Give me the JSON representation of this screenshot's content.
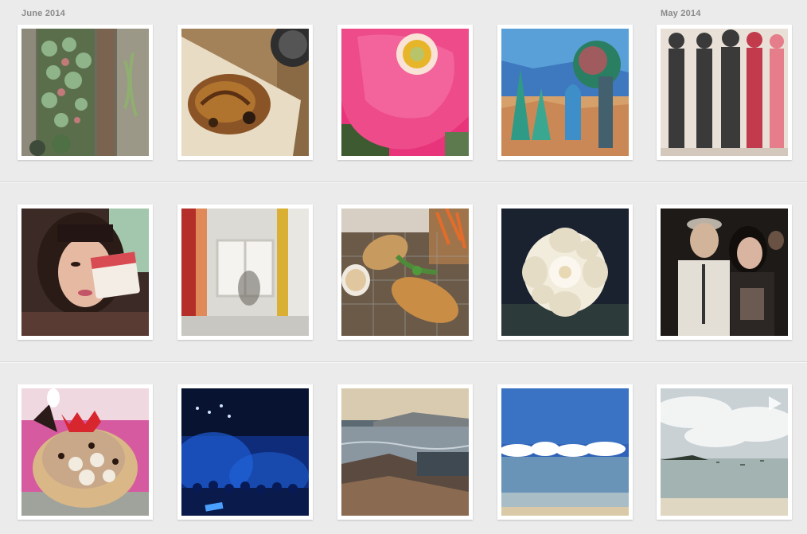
{
  "months": [
    {
      "label": "June 2014"
    },
    {
      "label": "May 2014"
    }
  ],
  "photos": [
    {
      "subject": "succulent-planter"
    },
    {
      "subject": "pastry"
    },
    {
      "subject": "pink-poppy"
    },
    {
      "subject": "illustrated-landscape"
    },
    {
      "subject": "band-poster"
    },
    {
      "subject": "selfie"
    },
    {
      "subject": "blurred-window"
    },
    {
      "subject": "sandwich-fries"
    },
    {
      "subject": "white-flower"
    },
    {
      "subject": "couple-at-event"
    },
    {
      "subject": "ice-cream-dessert"
    },
    {
      "subject": "concert-crowd"
    },
    {
      "subject": "ocean-sunset"
    },
    {
      "subject": "beach-blue-sky"
    },
    {
      "subject": "beach-video",
      "is_video": true
    }
  ]
}
